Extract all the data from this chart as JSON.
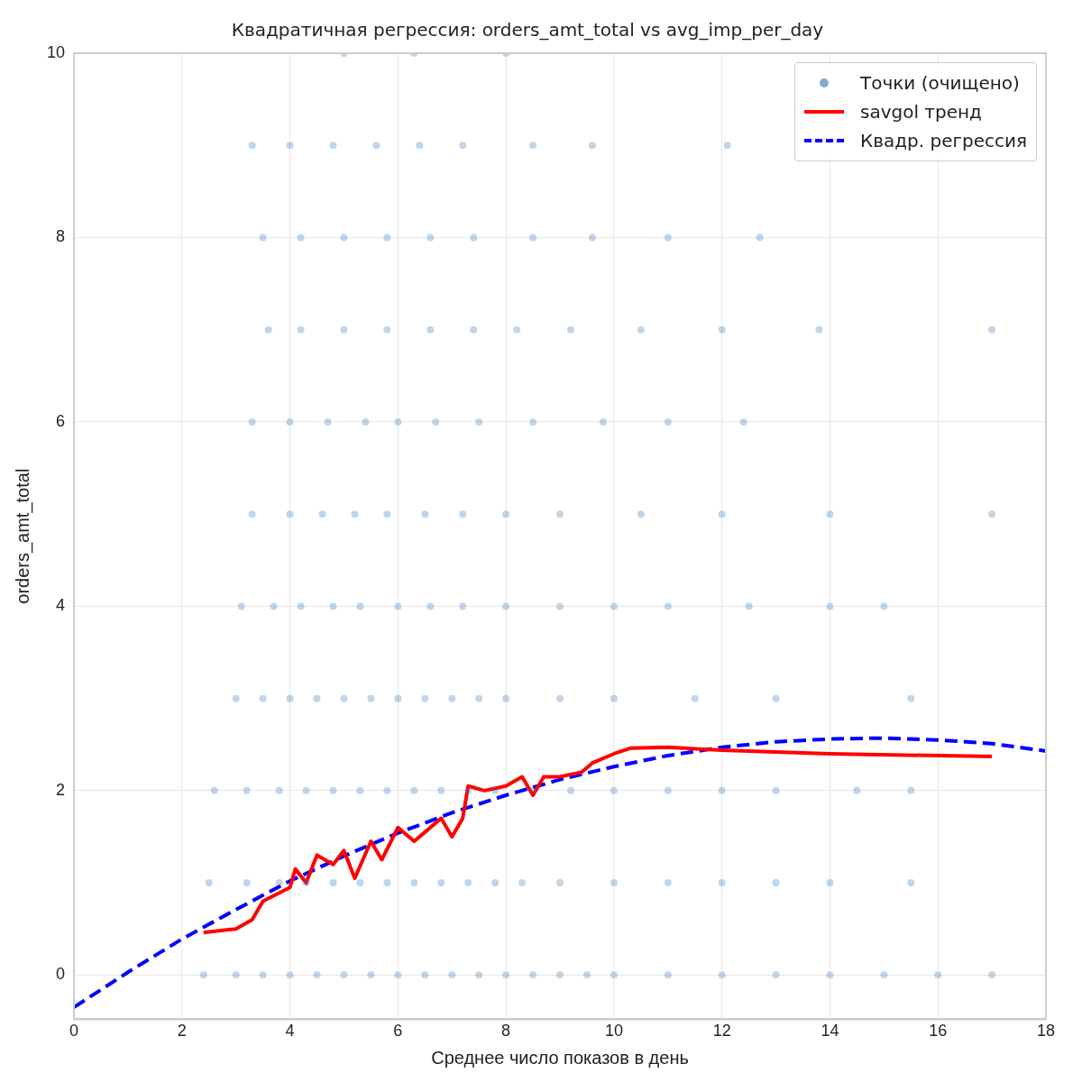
{
  "chart_data": {
    "type": "scatter",
    "title": "Квадратичная регрессия: orders_amt_total vs avg_imp_per_day",
    "xlabel": "Среднее число показов в день",
    "ylabel": "orders_amt_total",
    "xlim": [
      0,
      18
    ],
    "ylim": [
      -0.48,
      10
    ],
    "xticks": [
      0,
      2,
      4,
      6,
      8,
      10,
      12,
      14,
      16,
      18
    ],
    "yticks": [
      0,
      2,
      4,
      6,
      8,
      10
    ],
    "grid": true,
    "legend": "top right",
    "series": [
      {
        "name": "Точки (очищено)",
        "type": "scatter",
        "marker": "circle",
        "color": "#3274b5",
        "x": [
          2.4,
          3,
          3.5,
          4,
          4.5,
          5,
          5.5,
          6,
          6.5,
          7,
          7.5,
          8,
          8.5,
          9,
          9.5,
          10,
          11,
          12,
          13,
          14,
          15,
          16,
          17,
          2.5,
          3.2,
          3.8,
          4.3,
          4.8,
          5.3,
          5.8,
          6.3,
          6.8,
          7.3,
          7.8,
          8.3,
          9,
          10,
          11,
          12,
          13,
          14,
          15.5,
          2.6,
          3.2,
          3.8,
          4.3,
          4.8,
          5.3,
          5.8,
          6.3,
          6.8,
          7.3,
          7.8,
          8.5,
          9.2,
          10,
          11,
          12,
          13,
          14.5,
          15.5,
          3,
          3.5,
          4,
          4.5,
          5,
          5.5,
          6,
          6.5,
          7,
          7.5,
          8,
          9,
          10,
          11.5,
          13,
          15.5,
          3.1,
          3.7,
          4.2,
          4.8,
          5.3,
          6,
          6.6,
          7.2,
          8,
          9,
          10,
          11,
          12.5,
          14,
          15,
          3.3,
          4,
          4.6,
          5.2,
          5.8,
          6.5,
          7.2,
          8,
          9,
          10.5,
          12,
          14,
          17,
          3.3,
          4,
          4.7,
          5.4,
          6,
          6.7,
          7.5,
          8.5,
          9.8,
          11,
          12.4,
          3.6,
          4.2,
          5,
          5.8,
          6.6,
          7.4,
          8.2,
          9.2,
          10.5,
          12,
          13.8,
          17,
          3.5,
          4.2,
          5,
          5.8,
          6.6,
          7.4,
          8.5,
          9.6,
          11,
          12.7,
          3.3,
          4,
          4.8,
          5.6,
          6.4,
          7.2,
          8.5,
          9.6,
          12.1,
          5,
          6.3,
          8
        ],
        "values": [
          0,
          0,
          0,
          0,
          0,
          0,
          0,
          0,
          0,
          0,
          0,
          0,
          0,
          0,
          0,
          0,
          0,
          0,
          0,
          0,
          0,
          0,
          0,
          1,
          1,
          1,
          1,
          1,
          1,
          1,
          1,
          1,
          1,
          1,
          1,
          1,
          1,
          1,
          1,
          1,
          1,
          1,
          2,
          2,
          2,
          2,
          2,
          2,
          2,
          2,
          2,
          2,
          2,
          2,
          2,
          2,
          2,
          2,
          2,
          2,
          2,
          3,
          3,
          3,
          3,
          3,
          3,
          3,
          3,
          3,
          3,
          3,
          3,
          3,
          3,
          3,
          3,
          4,
          4,
          4,
          4,
          4,
          4,
          4,
          4,
          4,
          4,
          4,
          4,
          4,
          4,
          4,
          5,
          5,
          5,
          5,
          5,
          5,
          5,
          5,
          5,
          5,
          5,
          5,
          5,
          6,
          6,
          6,
          6,
          6,
          6,
          6,
          6,
          6,
          6,
          6,
          7,
          7,
          7,
          7,
          7,
          7,
          7,
          7,
          7,
          7,
          7,
          7,
          8,
          8,
          8,
          8,
          8,
          8,
          8,
          8,
          8,
          8,
          9,
          9,
          9,
          9,
          9,
          9,
          9,
          9,
          9,
          10,
          10,
          10
        ]
      },
      {
        "name": "savgol тренд",
        "type": "line",
        "line_style": "solid",
        "marker": "none",
        "color": "#ff0000",
        "x": [
          2.4,
          3,
          3.3,
          3.5,
          4,
          4.1,
          4.3,
          4.5,
          4.8,
          5,
          5.2,
          5.5,
          5.7,
          6,
          6.3,
          6.5,
          6.8,
          7,
          7.2,
          7.3,
          7.6,
          8,
          8.3,
          8.5,
          8.7,
          9,
          9.4,
          9.6,
          10,
          10.3,
          11,
          12,
          14,
          17
        ],
        "values": [
          0.46,
          0.5,
          0.6,
          0.8,
          0.95,
          1.15,
          1.0,
          1.3,
          1.2,
          1.35,
          1.05,
          1.45,
          1.25,
          1.6,
          1.45,
          1.55,
          1.7,
          1.5,
          1.7,
          2.05,
          2.0,
          2.05,
          2.15,
          1.95,
          2.15,
          2.15,
          2.2,
          2.3,
          2.4,
          2.46,
          2.47,
          2.44,
          2.4,
          2.37
        ]
      },
      {
        "name": "Квадр. регрессия",
        "type": "line",
        "line_style": "dashed",
        "marker": "none",
        "color": "#0000ff",
        "x": [
          0,
          1,
          2,
          3,
          4,
          5,
          6,
          7,
          8,
          9,
          10,
          11,
          12,
          13,
          14,
          15,
          16,
          17,
          18
        ],
        "values": [
          -0.35,
          0.03,
          0.39,
          0.71,
          1.02,
          1.29,
          1.54,
          1.76,
          1.95,
          2.12,
          2.26,
          2.38,
          2.47,
          2.53,
          2.56,
          2.57,
          2.55,
          2.51,
          2.43
        ]
      }
    ]
  }
}
